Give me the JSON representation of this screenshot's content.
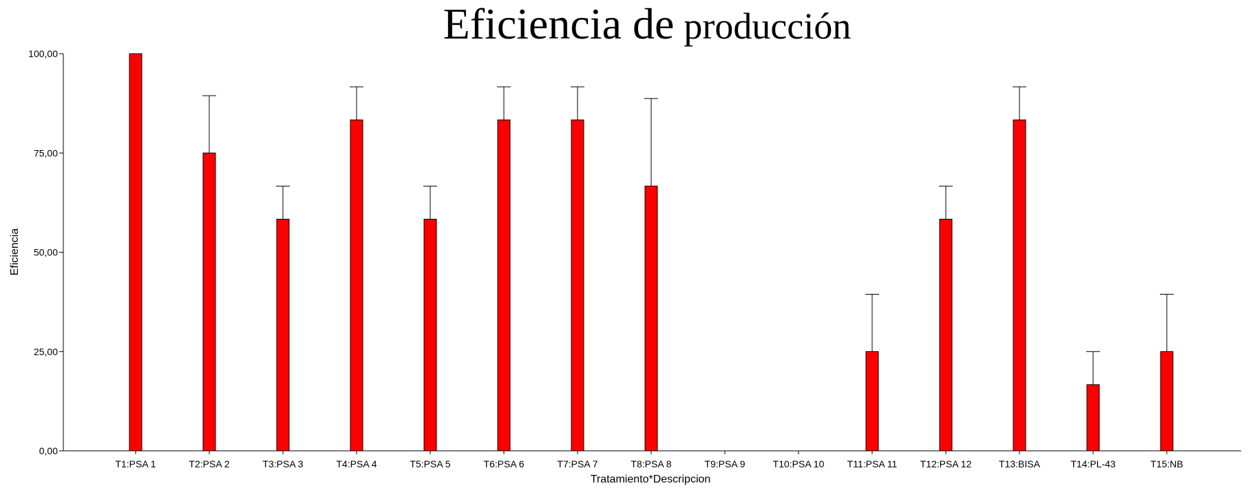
{
  "chart_data": {
    "type": "bar",
    "title_main": "Eficiencia de",
    "title_small": "producción",
    "xlabel": "Tratamiento*Descripcion",
    "ylabel": "Eficiencia",
    "ylim": [
      0,
      100
    ],
    "yticks": [
      "0,00",
      "25,00",
      "50,00",
      "75,00",
      "100,00"
    ],
    "categories": [
      "T1:PSA 1",
      "T2:PSA 2",
      "T3:PSA 3",
      "T4:PSA 4",
      "T5:PSA 5",
      "T6:PSA 6",
      "T7:PSA 7",
      "T8:PSA 8",
      "T9:PSA 9",
      "T10:PSA 10",
      "T11:PSA 11",
      "T12:PSA 12",
      "T13:BISA",
      "T14:PL-43",
      "T15:NB"
    ],
    "values": [
      100,
      75,
      58.33,
      83.33,
      58.33,
      83.33,
      83.33,
      66.67,
      0,
      0,
      25,
      58.33,
      83.33,
      16.67,
      25
    ],
    "error_upper": [
      100,
      89.43,
      66.67,
      91.67,
      66.67,
      91.67,
      91.67,
      88.71,
      0,
      0,
      39.43,
      66.67,
      91.67,
      25,
      39.43
    ],
    "bar_color": "#ff0000",
    "grid": false,
    "legend": "none"
  }
}
